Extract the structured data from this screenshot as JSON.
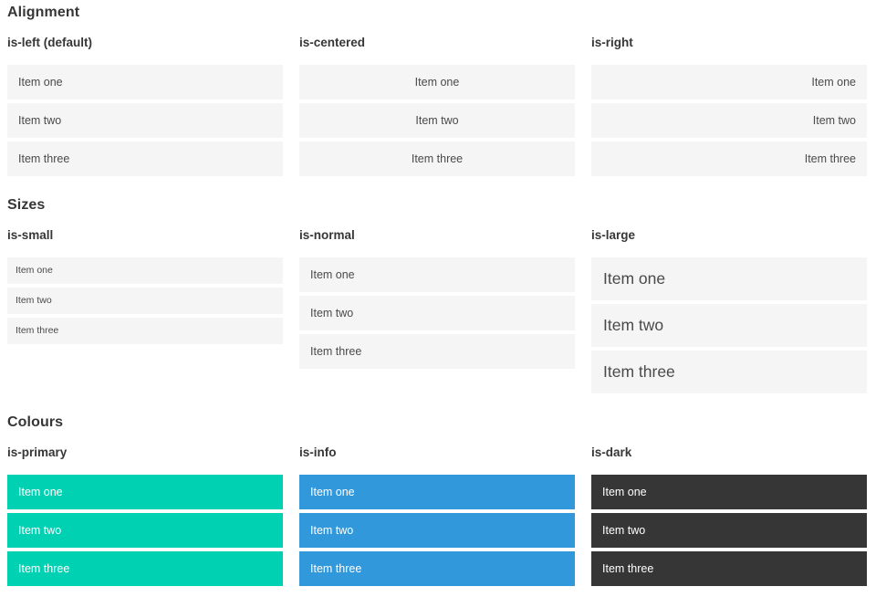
{
  "colors": {
    "primary": "#00d1b2",
    "info": "#3298dc",
    "dark": "#363636",
    "item_background": "#f5f5f5",
    "item_text": "#4a4a4a",
    "heading_text": "#363636",
    "colour_item_text": "#ffffff",
    "page_background": "#ffffff"
  },
  "sections": [
    {
      "title": "Alignment",
      "groups": [
        {
          "label": "is-left (default)",
          "items": [
            "Item one",
            "Item two",
            "Item three"
          ]
        },
        {
          "label": "is-centered",
          "items": [
            "Item one",
            "Item two",
            "Item three"
          ]
        },
        {
          "label": "is-right",
          "items": [
            "Item one",
            "Item two",
            "Item three"
          ]
        }
      ]
    },
    {
      "title": "Sizes",
      "groups": [
        {
          "label": "is-small",
          "items": [
            "Item one",
            "Item two",
            "Item three"
          ]
        },
        {
          "label": "is-normal",
          "items": [
            "Item one",
            "Item two",
            "Item three"
          ]
        },
        {
          "label": "is-large",
          "items": [
            "Item one",
            "Item two",
            "Item three"
          ]
        }
      ]
    },
    {
      "title": "Colours",
      "groups": [
        {
          "label": "is-primary",
          "items": [
            "Item one",
            "Item two",
            "Item three"
          ]
        },
        {
          "label": "is-info",
          "items": [
            "Item one",
            "Item two",
            "Item three"
          ]
        },
        {
          "label": "is-dark",
          "items": [
            "Item one",
            "Item two",
            "Item three"
          ]
        }
      ]
    }
  ]
}
